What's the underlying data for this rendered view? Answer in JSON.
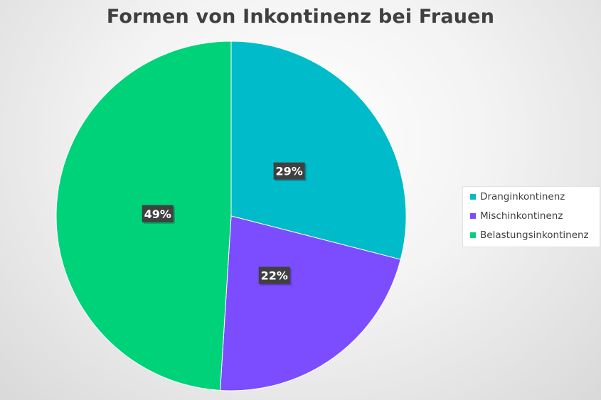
{
  "chart_data": {
    "type": "pie",
    "title": "Formen von Inkontinenz bei Frauen",
    "slices": [
      {
        "name": "Dranginkontinenz",
        "value": 29,
        "label": "29%",
        "color": "#00BBC9"
      },
      {
        "name": "Mischinkontinenz",
        "value": 22,
        "label": "22%",
        "color": "#7B4DFF"
      },
      {
        "name": "Belastungsinkontinenz",
        "value": 49,
        "label": "49%",
        "color": "#00D27A"
      }
    ],
    "legend_position": "right",
    "data_label_style": "dark badge, white bold text"
  }
}
